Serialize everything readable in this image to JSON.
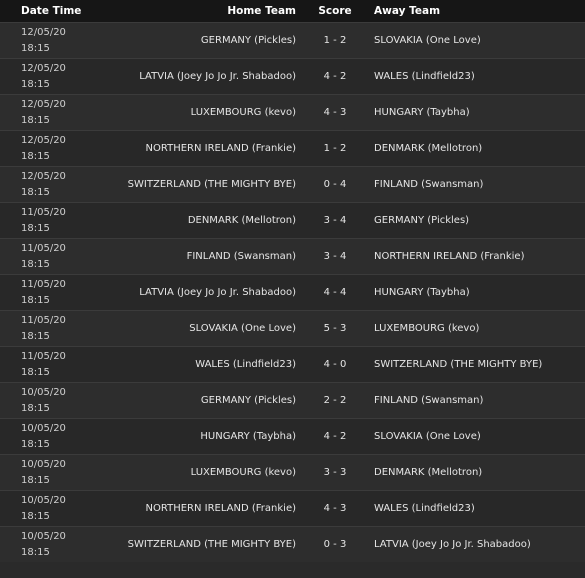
{
  "columns": {
    "date_time": "Date Time",
    "home_team": "Home Team",
    "score": "Score",
    "away_team": "Away Team"
  },
  "matches": [
    {
      "date": "12/05/20",
      "time": "18:15",
      "home": "GERMANY (Pickles)",
      "score": "1 - 2",
      "away": "SLOVAKIA (One Love)"
    },
    {
      "date": "12/05/20",
      "time": "18:15",
      "home": "LATVIA (Joey Jo Jo Jr. Shabadoo)",
      "score": "4 - 2",
      "away": "WALES (Lindfield23)"
    },
    {
      "date": "12/05/20",
      "time": "18:15",
      "home": "LUXEMBOURG (kevo)",
      "score": "4 - 3",
      "away": "HUNGARY (Taybha)"
    },
    {
      "date": "12/05/20",
      "time": "18:15",
      "home": "NORTHERN IRELAND (Frankie)",
      "score": "1 - 2",
      "away": "DENMARK (Mellotron)"
    },
    {
      "date": "12/05/20",
      "time": "18:15",
      "home": "SWITZERLAND (THE MIGHTY BYE)",
      "score": "0 - 4",
      "away": "FINLAND (Swansman)"
    },
    {
      "date": "11/05/20",
      "time": "18:15",
      "home": "DENMARK (Mellotron)",
      "score": "3 - 4",
      "away": "GERMANY (Pickles)"
    },
    {
      "date": "11/05/20",
      "time": "18:15",
      "home": "FINLAND (Swansman)",
      "score": "3 - 4",
      "away": "NORTHERN IRELAND (Frankie)"
    },
    {
      "date": "11/05/20",
      "time": "18:15",
      "home": "LATVIA (Joey Jo Jo Jr. Shabadoo)",
      "score": "4 - 4",
      "away": "HUNGARY (Taybha)"
    },
    {
      "date": "11/05/20",
      "time": "18:15",
      "home": "SLOVAKIA (One Love)",
      "score": "5 - 3",
      "away": "LUXEMBOURG (kevo)"
    },
    {
      "date": "11/05/20",
      "time": "18:15",
      "home": "WALES (Lindfield23)",
      "score": "4 - 0",
      "away": "SWITZERLAND (THE MIGHTY BYE)"
    },
    {
      "date": "10/05/20",
      "time": "18:15",
      "home": "GERMANY (Pickles)",
      "score": "2 - 2",
      "away": "FINLAND (Swansman)"
    },
    {
      "date": "10/05/20",
      "time": "18:15",
      "home": "HUNGARY (Taybha)",
      "score": "4 - 2",
      "away": "SLOVAKIA (One Love)"
    },
    {
      "date": "10/05/20",
      "time": "18:15",
      "home": "LUXEMBOURG (kevo)",
      "score": "3 - 3",
      "away": "DENMARK (Mellotron)"
    },
    {
      "date": "10/05/20",
      "time": "18:15",
      "home": "NORTHERN IRELAND (Frankie)",
      "score": "4 - 3",
      "away": "WALES (Lindfield23)"
    },
    {
      "date": "10/05/20",
      "time": "18:15",
      "home": "SWITZERLAND (THE MIGHTY BYE)",
      "score": "0 - 3",
      "away": "LATVIA (Joey Jo Jo Jr. Shabadoo)"
    }
  ]
}
